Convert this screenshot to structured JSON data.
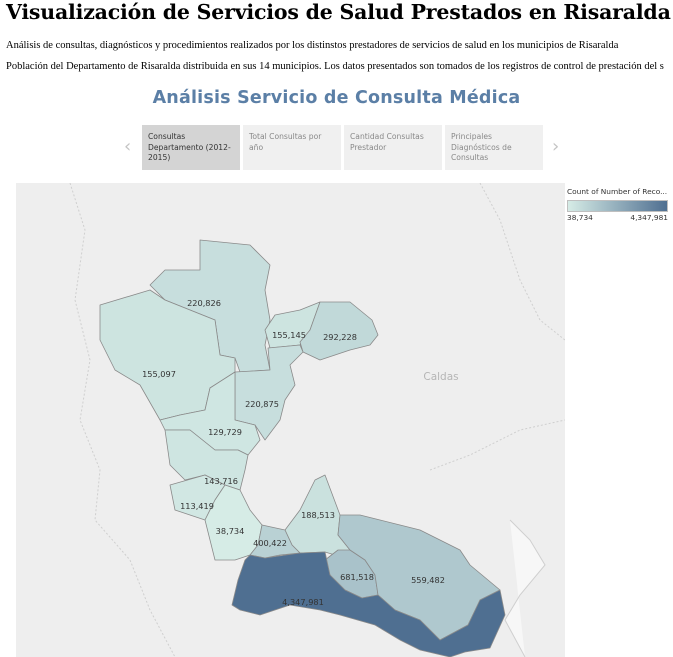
{
  "page": {
    "title": "Visualización de Servicios de Salud Prestados en Risaralda",
    "description_1": "Análisis de consultas, diagnósticos y procedimientos realizados por los distinstos prestadores de servicios de salud en los municipios de Risaralda",
    "description_2": "Población del Departamento de Risaralda distribuida en sus 14 municipios. Los datos presentados son tomados de los registros de control de prestación del s"
  },
  "section_title": "Análisis Servicio de Consulta Médica",
  "tabs": [
    {
      "label": "Consultas Departamento (2012-2015)",
      "active": true
    },
    {
      "label": "Total Consultas por año",
      "active": false
    },
    {
      "label": "Cantidad Consultas Prestador",
      "active": false
    },
    {
      "label": "Principales Diagnósticos de Consultas",
      "active": false
    }
  ],
  "nav": {
    "prev_icon": "chevron-left-icon",
    "next_icon": "chevron-right-icon"
  },
  "legend": {
    "title": "Count of Number of Reco...",
    "min_label": "38,734",
    "max_label": "4,347,981",
    "min_value": 38734,
    "max_value": 4347981,
    "color_low": "#d6ece6",
    "color_high": "#4f6f91"
  },
  "map": {
    "neighbor_label": "Caldas",
    "regions": [
      {
        "label": "220,826",
        "value": 220826
      },
      {
        "label": "155,097",
        "value": 155097
      },
      {
        "label": "155,145",
        "value": 155145
      },
      {
        "label": "292,228",
        "value": 292228
      },
      {
        "label": "220,875",
        "value": 220875
      },
      {
        "label": "129,729",
        "value": 129729
      },
      {
        "label": "143,716",
        "value": 143716
      },
      {
        "label": "113,419",
        "value": 113419
      },
      {
        "label": "38,734",
        "value": 38734
      },
      {
        "label": "188,513",
        "value": 188513
      },
      {
        "label": "400,422",
        "value": 400422
      },
      {
        "label": "681,518",
        "value": 681518
      },
      {
        "label": "559,482",
        "value": 559482
      },
      {
        "label": "4,347,981",
        "value": 4347981
      }
    ]
  }
}
